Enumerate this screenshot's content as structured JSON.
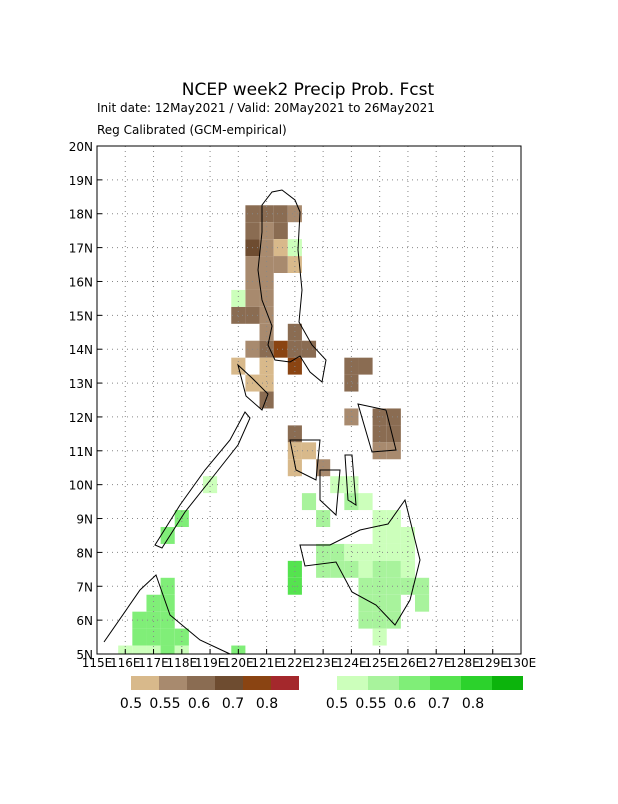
{
  "chart_data": {
    "type": "gridmap",
    "title": "NCEP week2 Precip Prob. Fcst",
    "subtitle": "Init date: 12May2021 / Valid: 20May2021 to 26May2021",
    "note": "Reg Calibrated (GCM-empirical)",
    "xlim": [
      115,
      130
    ],
    "ylim": [
      5,
      20
    ],
    "xticks": [
      {
        "value": 115,
        "label": "115E"
      },
      {
        "value": 116,
        "label": "116E"
      },
      {
        "value": 117,
        "label": "117E"
      },
      {
        "value": 118,
        "label": "118E"
      },
      {
        "value": 119,
        "label": "119E"
      },
      {
        "value": 120,
        "label": "120E"
      },
      {
        "value": 121,
        "label": "121E"
      },
      {
        "value": 122,
        "label": "122E"
      },
      {
        "value": 123,
        "label": "123E"
      },
      {
        "value": 124,
        "label": "124E"
      },
      {
        "value": 125,
        "label": "125E"
      },
      {
        "value": 126,
        "label": "126E"
      },
      {
        "value": 127,
        "label": "127E"
      },
      {
        "value": 128,
        "label": "128E"
      },
      {
        "value": 129,
        "label": "129E"
      },
      {
        "value": 130,
        "label": "130E"
      }
    ],
    "yticks": [
      {
        "value": 5,
        "label": "5N"
      },
      {
        "value": 6,
        "label": "6N"
      },
      {
        "value": 7,
        "label": "7N"
      },
      {
        "value": 8,
        "label": "8N"
      },
      {
        "value": 9,
        "label": "9N"
      },
      {
        "value": 10,
        "label": "10N"
      },
      {
        "value": 11,
        "label": "11N"
      },
      {
        "value": 12,
        "label": "12N"
      },
      {
        "value": 13,
        "label": "13N"
      },
      {
        "value": 14,
        "label": "14N"
      },
      {
        "value": 15,
        "label": "15N"
      },
      {
        "value": 16,
        "label": "16N"
      },
      {
        "value": 17,
        "label": "17N"
      },
      {
        "value": 18,
        "label": "18N"
      },
      {
        "value": 19,
        "label": "19N"
      },
      {
        "value": 20,
        "label": "20N"
      }
    ],
    "grid": true,
    "cell_size": 0.5,
    "levels": [
      0.5,
      0.55,
      0.6,
      0.7,
      0.8
    ],
    "dry_colors": [
      "#d8b98b",
      "#a88a6e",
      "#8a6c52",
      "#6e4c30",
      "#8a4412",
      "#a4282c"
    ],
    "wet_colors": [
      "#ccffbb",
      "#a8f39c",
      "#80ee78",
      "#55e34f",
      "#2cd22c",
      "#0cb40c"
    ],
    "dry": {
      "lon": [
        120.5,
        121.0,
        121.5,
        122.0,
        120.5,
        121.0,
        121.5,
        120.5,
        121.0,
        121.5,
        120.5,
        121.0,
        121.5,
        122.0,
        120.5,
        121.0,
        120.5,
        121.0,
        120.0,
        120.5,
        121.0,
        121.0,
        122.0,
        120.5,
        121.0,
        121.5,
        122.0,
        122.5,
        120.0,
        121.0,
        122.0,
        120.5,
        121.0,
        124.0,
        124.5,
        124.0,
        121.0,
        124.0,
        125.0,
        125.5,
        122.0,
        125.0,
        125.5,
        122.0,
        122.5,
        125.0,
        125.5,
        122.0,
        123.0
      ],
      "lat": [
        18.0,
        18.0,
        18.0,
        18.0,
        17.5,
        17.5,
        17.5,
        17.0,
        17.0,
        17.0,
        16.5,
        16.5,
        16.5,
        16.5,
        16.0,
        16.0,
        15.5,
        15.5,
        15.0,
        15.0,
        15.0,
        14.5,
        14.5,
        14.0,
        14.0,
        14.0,
        14.0,
        14.0,
        13.5,
        13.5,
        13.5,
        13.0,
        13.0,
        13.5,
        13.5,
        13.0,
        12.5,
        12.0,
        12.0,
        12.0,
        11.5,
        11.5,
        11.5,
        11.0,
        11.0,
        11.0,
        11.0,
        10.5,
        10.5
      ],
      "prob": [
        0.65,
        0.65,
        0.65,
        0.57,
        0.65,
        0.57,
        0.65,
        0.75,
        0.57,
        0.52,
        0.57,
        0.57,
        0.57,
        0.52,
        0.57,
        0.57,
        0.57,
        0.57,
        0.65,
        0.65,
        0.57,
        0.57,
        0.65,
        0.57,
        0.65,
        0.85,
        0.65,
        0.65,
        0.52,
        0.52,
        0.85,
        0.52,
        0.52,
        0.65,
        0.65,
        0.65,
        0.65,
        0.57,
        0.65,
        0.65,
        0.65,
        0.65,
        0.65,
        0.52,
        0.52,
        0.57,
        0.57,
        0.52,
        0.57
      ]
    },
    "wet": {
      "lon": [
        120.0,
        122.0,
        119.0,
        118.0,
        117.5,
        117.5,
        117.0,
        117.5,
        116.5,
        117.0,
        117.5,
        116.5,
        117.0,
        117.5,
        118.0,
        116.0,
        116.5,
        117.0,
        117.5,
        118.0,
        120.0,
        123.5,
        124.0,
        122.5,
        124.0,
        124.5,
        123.0,
        125.0,
        125.5,
        125.0,
        125.5,
        126.0,
        123.0,
        123.5,
        124.0,
        124.5,
        125.0,
        125.5,
        126.0,
        122.0,
        123.0,
        123.5,
        124.0,
        124.5,
        125.0,
        125.5,
        126.0,
        122.0,
        124.5,
        125.0,
        125.5,
        126.0,
        126.5,
        124.5,
        125.0,
        125.5,
        126.5,
        124.5,
        125.0,
        125.5,
        125.0
      ],
      "lat": [
        15.5,
        17.0,
        10.0,
        9.0,
        8.5,
        7.0,
        6.5,
        6.5,
        6.0,
        6.0,
        6.0,
        5.5,
        5.5,
        5.5,
        5.5,
        5.0,
        5.0,
        5.0,
        5.0,
        5.0,
        5.0,
        10.0,
        10.0,
        9.5,
        9.5,
        9.5,
        9.0,
        9.0,
        9.0,
        8.5,
        8.5,
        8.5,
        8.0,
        8.0,
        8.0,
        8.0,
        8.0,
        8.0,
        8.0,
        7.5,
        7.5,
        7.5,
        7.5,
        7.5,
        7.5,
        7.5,
        7.5,
        7.0,
        7.0,
        7.0,
        7.0,
        7.0,
        7.0,
        6.5,
        6.5,
        6.5,
        6.5,
        6.0,
        6.0,
        6.0,
        5.5
      ],
      "prob": [
        0.52,
        0.52,
        0.52,
        0.65,
        0.65,
        0.65,
        0.65,
        0.65,
        0.65,
        0.65,
        0.65,
        0.65,
        0.65,
        0.65,
        0.65,
        0.52,
        0.52,
        0.52,
        0.65,
        0.52,
        0.65,
        0.52,
        0.52,
        0.57,
        0.57,
        0.52,
        0.57,
        0.52,
        0.52,
        0.52,
        0.52,
        0.52,
        0.57,
        0.57,
        0.52,
        0.52,
        0.52,
        0.52,
        0.52,
        0.75,
        0.57,
        0.57,
        0.57,
        0.52,
        0.57,
        0.57,
        0.52,
        0.75,
        0.57,
        0.57,
        0.57,
        0.57,
        0.57,
        0.57,
        0.57,
        0.57,
        0.57,
        0.57,
        0.57,
        0.57,
        0.52
      ]
    }
  }
}
